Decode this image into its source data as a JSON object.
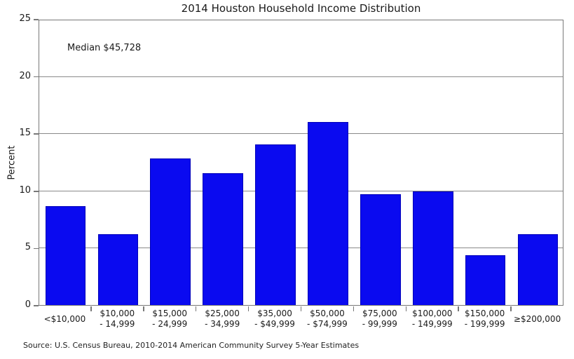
{
  "page": {
    "source_note": "Source: U.S. Census Bureau, 2010-2014 American Community Survey 5-Year Estimates"
  },
  "chart_data": {
    "type": "bar",
    "title": "2014 Houston Household Income Distribution",
    "annotation": "Median $45,728",
    "xlabel": "",
    "ylabel": "Percent",
    "ylim": [
      0,
      25
    ],
    "yticks": [
      0,
      5,
      10,
      15,
      20,
      25
    ],
    "grid": "horizontal gray gridlines at y ticks, behind bars",
    "legend": "none",
    "bar_color": "#0a0af0",
    "categories": [
      "<$10,000",
      "$10,000 - 14,999",
      "$15,000 - 24,999",
      "$25,000 - 34,999",
      "$35,000 - $49,999",
      "$50,000 - $74,999",
      "$75,000 - 99,999",
      "$100,000 - 149,999",
      "$150,000 - 199,999",
      "≥$200,000"
    ],
    "category_label_lines": [
      [
        "<$10,000"
      ],
      [
        "$10,000",
        "- 14,999"
      ],
      [
        "$15,000",
        "- 24,999"
      ],
      [
        "$25,000",
        "- 34,999"
      ],
      [
        "$35,000",
        "- $49,999"
      ],
      [
        "$50,000",
        "- $74,999"
      ],
      [
        "$75,000",
        "- 99,999"
      ],
      [
        "$100,000",
        "- 149,999"
      ],
      [
        "$150,000",
        "- 199,999"
      ],
      [
        "≥$200,000"
      ]
    ],
    "values": [
      8.7,
      6.2,
      12.9,
      11.6,
      14.1,
      16.1,
      9.7,
      10.0,
      4.4,
      6.2
    ]
  }
}
